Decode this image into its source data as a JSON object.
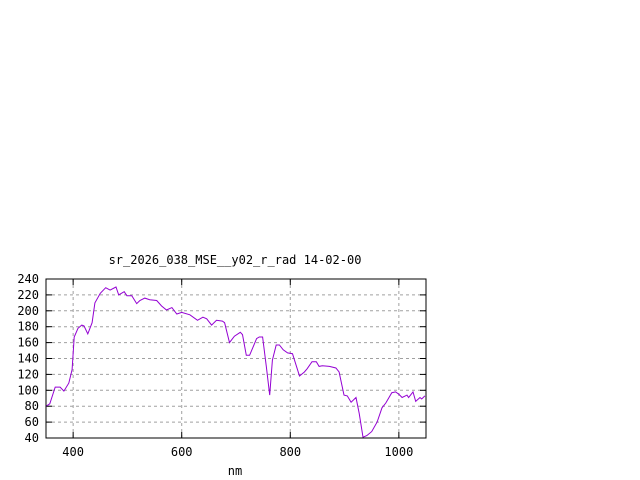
{
  "chart_data": {
    "type": "line",
    "title": "sr_2026_038_MSE__y02_r_rad 14-02-00",
    "xlabel": "nm",
    "ylabel": "",
    "xlim": [
      350,
      1050
    ],
    "ylim": [
      40,
      240
    ],
    "xticks": [
      400,
      600,
      800,
      1000
    ],
    "yticks": [
      40,
      60,
      80,
      100,
      120,
      140,
      160,
      180,
      200,
      220,
      240
    ],
    "grid": true,
    "line_color": "#9400d3",
    "series": [
      {
        "x": [
          350,
          357,
          367,
          376,
          383,
          392,
          398,
          402,
          409,
          416,
          420,
          427,
          435,
          440,
          450,
          460,
          468,
          479,
          484,
          494,
          499,
          508,
          517,
          523,
          532,
          541,
          554,
          563,
          572,
          582,
          591,
          600,
          615,
          629,
          639,
          646,
          655,
          664,
          675,
          679,
          688,
          697,
          708,
          712,
          719,
          725,
          738,
          743,
          749,
          756,
          762,
          767,
          774,
          780,
          787,
          795,
          804,
          817,
          826,
          831,
          840,
          848,
          853,
          859,
          872,
          884,
          890,
          899,
          905,
          912,
          921,
          927,
          934,
          941,
          950,
          960,
          969,
          976,
          987,
          994,
          1000,
          1006,
          1015,
          1018,
          1026,
          1031,
          1039,
          1042,
          1048
        ],
        "y": [
          80,
          83,
          104,
          104,
          99,
          109,
          126,
          167,
          178,
          182,
          181,
          171,
          185,
          210,
          222,
          229,
          226,
          230,
          220,
          224,
          219,
          219,
          209,
          213,
          216,
          214,
          213,
          206,
          201,
          204,
          196,
          198,
          195,
          188,
          192,
          190,
          182,
          188,
          187,
          185,
          160,
          168,
          173,
          170,
          144,
          144,
          165,
          167,
          167,
          129,
          94,
          138,
          157,
          157,
          151,
          147,
          146,
          118,
          123,
          127,
          136,
          136,
          130,
          131,
          130,
          128,
          123,
          94,
          93,
          85,
          91,
          71,
          41,
          43,
          48,
          60,
          78,
          84,
          97,
          98,
          95,
          91,
          94,
          91,
          98,
          86,
          91,
          89,
          93
        ]
      }
    ]
  }
}
